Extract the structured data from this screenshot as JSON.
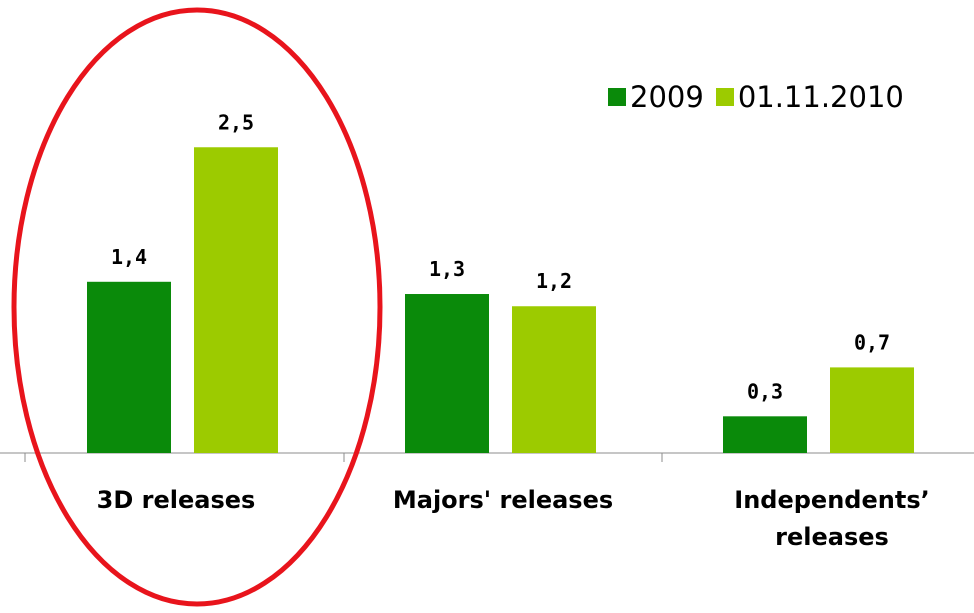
{
  "chart_data": {
    "type": "bar",
    "categories": [
      "3D releases",
      "Majors' releases",
      "Independents’ releases"
    ],
    "series": [
      {
        "name": "2009",
        "values": [
          1.4,
          1.3,
          0.3
        ],
        "color": "#0a8a0a"
      },
      {
        "name": "01.11.2010",
        "values": [
          2.5,
          1.2,
          0.7
        ],
        "color": "#9ccb00"
      }
    ],
    "data_labels": [
      [
        "1,4",
        "1,3",
        "0,3"
      ],
      [
        "2,5",
        "1,2",
        "0,7"
      ]
    ],
    "ylim": [
      0,
      3.05
    ],
    "grid": false,
    "legend_position": "top-right",
    "annotation": {
      "shape": "ellipse",
      "color": "#e8141c",
      "target_category": "3D releases"
    }
  }
}
